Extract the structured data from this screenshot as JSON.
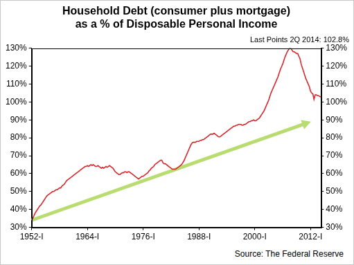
{
  "chart_data": {
    "type": "line",
    "title": [
      "Household Debt (consumer plus mortgage)",
      "as a % of Disposable Personal Income"
    ],
    "subtitle": "Last Points 2Q 2014: 102.8%",
    "source": "Source: The Federal Reserve",
    "categories": [
      "1952-I",
      null,
      null,
      null,
      null,
      null,
      null,
      null,
      null,
      null,
      null,
      null,
      null,
      null,
      null,
      null,
      null,
      null,
      null,
      null,
      null,
      null,
      null,
      null,
      null,
      null,
      null,
      null,
      null,
      null,
      null,
      null,
      null,
      null,
      null,
      null,
      null,
      null,
      null,
      null,
      null,
      null,
      null,
      null,
      null,
      null,
      null,
      null,
      "1964-I",
      null,
      null,
      null,
      null,
      null,
      null,
      null,
      null,
      null,
      null,
      null,
      null,
      null,
      null,
      null,
      null,
      null,
      null,
      null,
      null,
      null,
      null,
      null,
      null,
      null,
      null,
      null,
      null,
      null,
      null,
      null,
      null,
      null,
      null,
      null,
      null,
      null,
      null,
      null,
      null,
      null,
      null,
      null,
      null,
      null,
      null,
      null,
      "1976-I",
      null,
      null,
      null,
      null,
      null,
      null,
      null,
      null,
      null,
      null,
      null,
      null,
      null,
      null,
      null,
      null,
      null,
      null,
      null,
      null,
      null,
      null,
      null,
      null,
      null,
      null,
      null,
      null,
      null,
      null,
      null,
      null,
      null,
      null,
      null,
      null,
      null,
      null,
      null,
      null,
      null,
      null,
      null,
      null,
      null,
      null,
      null,
      "1988-I",
      null,
      null,
      null,
      null,
      null,
      null,
      null,
      null,
      null,
      null,
      null,
      null,
      null,
      null,
      null,
      null,
      null,
      null,
      null,
      null,
      null,
      null,
      null,
      null,
      null,
      null,
      null,
      null,
      null,
      null,
      null,
      null,
      null,
      null,
      null,
      null,
      null,
      null,
      null,
      null,
      null,
      null,
      null,
      null,
      null,
      null,
      null,
      "2000-I",
      null,
      null,
      null,
      null,
      null,
      null,
      null,
      null,
      null,
      null,
      null,
      null,
      null,
      null,
      null,
      null,
      null,
      null,
      null,
      null,
      null,
      null,
      null,
      null,
      null,
      null,
      null,
      null,
      null,
      null,
      null,
      null,
      null,
      null,
      null,
      null,
      null,
      null,
      null,
      null,
      null,
      null,
      null,
      null,
      null,
      null,
      null,
      "2012-I",
      null,
      null,
      null,
      null,
      null,
      null,
      null,
      null,
      null
    ],
    "series": [
      {
        "name": "Household Debt (consumer plus mortgage) as a % of Disposable Personal Income",
        "color": "#d9262b",
        "values": [
          34,
          35,
          36.5,
          38,
          39,
          40,
          41,
          42,
          42.5,
          43.5,
          44.5,
          45.5,
          46.5,
          47.5,
          48,
          48.5,
          49,
          49.5,
          50,
          50,
          50.5,
          51,
          51,
          51.5,
          52,
          52,
          53,
          53.5,
          54,
          55,
          56,
          56.5,
          57,
          57.5,
          58,
          58.5,
          59,
          59.5,
          60,
          60.5,
          61,
          61.5,
          62,
          62.5,
          63,
          63.5,
          64,
          64,
          64.5,
          64,
          64.5,
          65,
          64.5,
          65,
          64.5,
          64,
          64,
          64.5,
          64,
          63.5,
          63,
          63.5,
          63,
          63.5,
          64,
          63.5,
          64,
          64.5,
          64,
          63.5,
          63,
          62,
          61,
          60.5,
          60,
          59.5,
          59.5,
          60,
          60.5,
          60.5,
          61,
          61,
          60.5,
          61,
          61,
          60.5,
          60,
          59.5,
          59,
          58.5,
          58,
          57.5,
          57,
          57.5,
          58,
          58.5,
          58.5,
          59,
          59.5,
          60,
          60.5,
          61.5,
          62,
          63,
          63.5,
          64,
          65,
          65.5,
          66,
          66.5,
          67,
          67.5,
          67.5,
          66,
          65.5,
          65.5,
          65,
          64.5,
          64,
          63.5,
          63,
          62.5,
          62.5,
          62.5,
          62.5,
          63,
          63.5,
          64,
          64.5,
          65,
          66,
          67,
          68.5,
          70,
          71.5,
          73,
          74.5,
          76,
          77,
          77.5,
          77.5,
          77.5,
          78,
          78,
          78,
          78.5,
          78.5,
          79,
          79,
          79.5,
          80,
          80.5,
          81,
          81.5,
          82,
          82,
          82,
          82.5,
          82,
          81.5,
          81,
          80.5,
          80.5,
          81,
          81.5,
          82,
          82.5,
          83,
          83.5,
          84,
          84.5,
          85,
          85.5,
          86,
          86.5,
          86.5,
          87,
          87,
          87.5,
          87.5,
          87.5,
          87,
          87,
          87.5,
          87.5,
          88,
          88.5,
          89,
          89,
          89.5,
          89.5,
          90,
          89.5,
          89.5,
          90,
          90.5,
          91,
          92,
          93,
          94,
          95,
          96.5,
          98,
          99.5,
          101,
          103,
          105,
          106.5,
          108,
          109.5,
          111,
          112.5,
          114,
          116,
          118,
          119.5,
          121,
          123,
          125,
          126.5,
          128,
          129,
          130,
          130,
          129,
          128,
          128,
          127.5,
          127,
          127,
          125.5,
          124,
          121,
          119,
          117,
          115,
          113,
          111.5,
          110,
          108.5,
          106,
          105,
          104.5,
          101.5,
          104,
          104,
          103.5,
          103.5,
          103,
          102.8
        ]
      },
      {
        "color": "#b9dc70",
        "marker": "arrow",
        "values": [
          34,
          null,
          null,
          null,
          null,
          null,
          null,
          null,
          null,
          null,
          null,
          null,
          null,
          null,
          null,
          null,
          null,
          null,
          null,
          null,
          null,
          null,
          null,
          null,
          null,
          null,
          null,
          null,
          null,
          null,
          null,
          null,
          null,
          null,
          null,
          null,
          null,
          null,
          null,
          null,
          null,
          null,
          null,
          null,
          null,
          null,
          null,
          null,
          null,
          null,
          null,
          null,
          null,
          null,
          null,
          null,
          null,
          null,
          null,
          null,
          null,
          null,
          null,
          null,
          null,
          null,
          null,
          null,
          null,
          null,
          null,
          null,
          null,
          null,
          null,
          null,
          null,
          null,
          null,
          null,
          null,
          null,
          null,
          null,
          null,
          null,
          null,
          null,
          null,
          null,
          null,
          null,
          null,
          null,
          null,
          null,
          null,
          null,
          null,
          null,
          null,
          null,
          null,
          null,
          null,
          null,
          null,
          null,
          null,
          null,
          null,
          null,
          null,
          null,
          null,
          null,
          null,
          null,
          null,
          null,
          null,
          null,
          null,
          null,
          null,
          null,
          null,
          null,
          null,
          null,
          null,
          null,
          null,
          null,
          null,
          null,
          null,
          null,
          null,
          null,
          null,
          null,
          null,
          null,
          null,
          null,
          null,
          null,
          null,
          null,
          null,
          null,
          null,
          null,
          null,
          null,
          null,
          null,
          null,
          null,
          null,
          null,
          null,
          null,
          null,
          null,
          null,
          null,
          null,
          null,
          null,
          null,
          null,
          null,
          null,
          null,
          null,
          null,
          null,
          null,
          null,
          null,
          null,
          null,
          null,
          null,
          null,
          null,
          null,
          null,
          null,
          null,
          null,
          null,
          null,
          null,
          null,
          null,
          null,
          null,
          null,
          null,
          null,
          null,
          null,
          null,
          null,
          null,
          null,
          null,
          null,
          null,
          null,
          null,
          null,
          null,
          null,
          null,
          null,
          null,
          null,
          null,
          null,
          null,
          null,
          null,
          null,
          null,
          null,
          null,
          null,
          null,
          null,
          null,
          null,
          null,
          88,
          null,
          null,
          null,
          null,
          null,
          null,
          null,
          null,
          null,
          null,
          null,
          null,
          null
        ]
      }
    ],
    "ylim": [
      30,
      130
    ],
    "yticks": [
      {
        "value": 30,
        "label": "30%"
      },
      {
        "value": 40,
        "label": "40%"
      },
      {
        "value": 50,
        "label": "50%"
      },
      {
        "value": 60,
        "label": "60%"
      },
      {
        "value": 70,
        "label": "70%"
      },
      {
        "value": 80,
        "label": "80%"
      },
      {
        "value": 90,
        "label": "90%"
      },
      {
        "value": 100,
        "label": "100%"
      },
      {
        "value": 110,
        "label": "110%"
      },
      {
        "value": 120,
        "label": "120%"
      },
      {
        "value": 130,
        "label": "130%"
      }
    ],
    "y2lim": [
      30,
      130
    ],
    "y2ticks": [
      {
        "value": 30,
        "label": "30%"
      },
      {
        "value": 40,
        "label": "40%"
      },
      {
        "value": 50,
        "label": "50%"
      },
      {
        "value": 60,
        "label": "60%"
      },
      {
        "value": 70,
        "label": "70%"
      },
      {
        "value": 80,
        "label": "80%"
      },
      {
        "value": 90,
        "label": "90%"
      },
      {
        "value": 100,
        "label": "100%"
      },
      {
        "value": 110,
        "label": "110%"
      },
      {
        "value": 120,
        "label": "120%"
      },
      {
        "value": 130,
        "label": "130%"
      }
    ],
    "grid": false
  }
}
